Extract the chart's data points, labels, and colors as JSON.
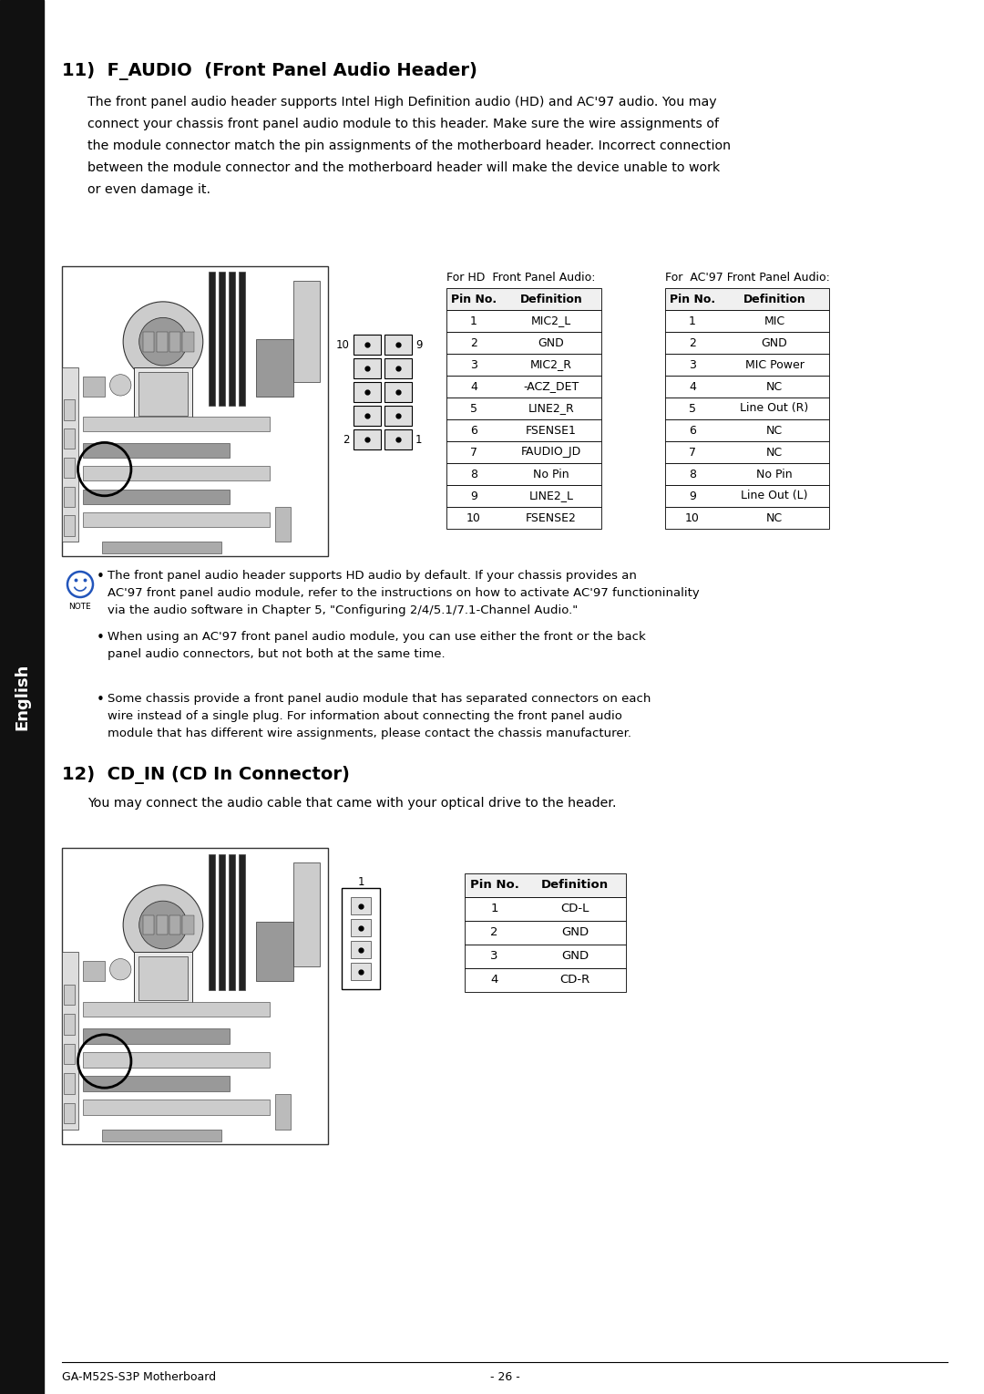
{
  "bg_color": "#ffffff",
  "sidebar_color": "#111111",
  "sidebar_text": "English",
  "title1": "11)  F_AUDIO  (Front Panel Audio Header)",
  "body1_lines": [
    "The front panel audio header supports Intel High Definition audio (HD) and AC'97 audio. You may",
    "connect your chassis front panel audio module to this header. Make sure the wire assignments of",
    "the module connector match the pin assignments of the motherboard header. Incorrect connection",
    "between the module connector and the motherboard header will make the device unable to work",
    "or even damage it."
  ],
  "hd_table_title": "For HD  Front Panel Audio:",
  "ac97_table_title": "For  AC'97 Front Panel Audio:",
  "hd_table": [
    [
      "Pin No.",
      "Definition"
    ],
    [
      "1",
      "MIC2_L"
    ],
    [
      "2",
      "GND"
    ],
    [
      "3",
      "MIC2_R"
    ],
    [
      "4",
      "-ACZ_DET"
    ],
    [
      "5",
      "LINE2_R"
    ],
    [
      "6",
      "FSENSE1"
    ],
    [
      "7",
      "FAUDIO_JD"
    ],
    [
      "8",
      "No Pin"
    ],
    [
      "9",
      "LINE2_L"
    ],
    [
      "10",
      "FSENSE2"
    ]
  ],
  "ac97_table": [
    [
      "Pin No.",
      "Definition"
    ],
    [
      "1",
      "MIC"
    ],
    [
      "2",
      "GND"
    ],
    [
      "3",
      "MIC Power"
    ],
    [
      "4",
      "NC"
    ],
    [
      "5",
      "Line Out (R)"
    ],
    [
      "6",
      "NC"
    ],
    [
      "7",
      "NC"
    ],
    [
      "8",
      "No Pin"
    ],
    [
      "9",
      "Line Out (L)"
    ],
    [
      "10",
      "NC"
    ]
  ],
  "note_bullets": [
    "The front panel audio header supports HD audio by default. If your chassis provides an\nAC'97 front panel audio module, refer to the instructions on how to activate AC'97 functioninality\nvia the audio software in Chapter 5, \"Configuring 2/4/5.1/7.1-Channel Audio.\"",
    "When using an AC'97 front panel audio module, you can use either the front or the back\npanel audio connectors, but not both at the same time.",
    "Some chassis provide a front panel audio module that has separated connectors on each\nwire instead of a single plug. For information about connecting the front panel audio\nmodule that has different wire assignments, please contact the chassis manufacturer."
  ],
  "title2": "12)  CD_IN (CD In Connector)",
  "body2": "You may connect the audio cable that came with your optical drive to the header.",
  "cdin_table": [
    [
      "Pin No.",
      "Definition"
    ],
    [
      "1",
      "CD-L"
    ],
    [
      "2",
      "GND"
    ],
    [
      "3",
      "GND"
    ],
    [
      "4",
      "CD-R"
    ]
  ],
  "footer_left": "GA-M52S-S3P Motherboard",
  "footer_center": "- 26 -",
  "mb_line_color": "#333333",
  "mb_face_color": "#ffffff",
  "mb_part_color": "#888888",
  "mb_dark_color": "#444444"
}
